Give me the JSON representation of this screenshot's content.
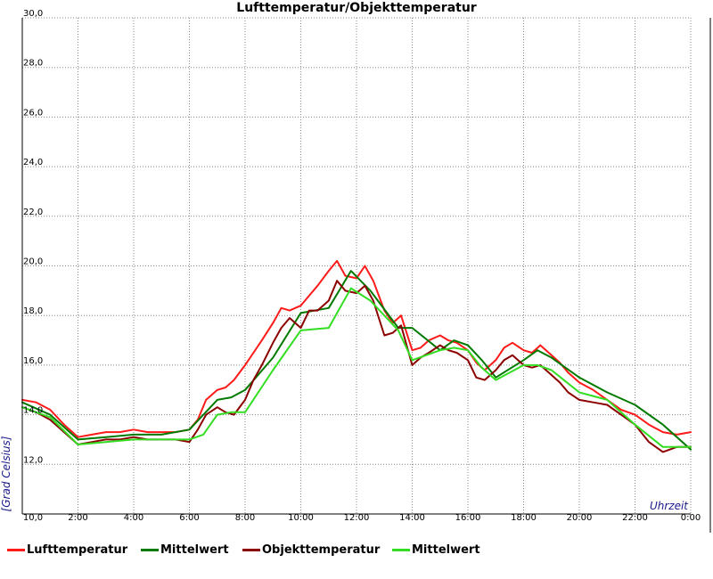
{
  "chart_data": {
    "type": "line",
    "title": "Lufttemperatur/Objekttemperatur",
    "xlabel": "Uhrzeit",
    "ylabel": "[Grad Celsius]",
    "x_ticks": [
      "10,0",
      "2:00",
      "4:00",
      "6:00",
      "8:00",
      "10:00",
      "12:00",
      "14:00",
      "16:00",
      "18:00",
      "20:00",
      "22:00",
      "0:00"
    ],
    "y_ticks": [
      "12,0",
      "14,0",
      "16,0",
      "18,0",
      "20,0",
      "22,0",
      "24,0",
      "26,0",
      "28,0",
      "30,0"
    ],
    "xlim": [
      0,
      24
    ],
    "ylim": [
      10,
      30
    ],
    "grid": true,
    "legend_position": "bottom",
    "series": [
      {
        "name": "Lufttemperatur",
        "color": "#ff1a1a",
        "x": [
          0,
          0.5,
          1,
          1.5,
          2,
          2.5,
          3,
          3.5,
          4,
          4.5,
          5,
          5.5,
          6,
          6.3,
          6.6,
          7,
          7.3,
          7.6,
          8,
          8.3,
          8.6,
          9,
          9.3,
          9.6,
          10,
          10.3,
          10.6,
          11,
          11.3,
          11.6,
          12,
          12.3,
          12.6,
          13,
          13.3,
          13.6,
          14,
          14.3,
          14.6,
          15,
          15.3,
          15.6,
          16,
          16.3,
          16.6,
          17,
          17.3,
          17.6,
          18,
          18.3,
          18.6,
          19,
          19.3,
          19.6,
          20,
          20.5,
          21,
          21.5,
          22,
          22.5,
          23,
          23.5,
          24
        ],
        "y": [
          14.6,
          14.5,
          14.2,
          13.6,
          13.1,
          13.2,
          13.3,
          13.3,
          13.4,
          13.3,
          13.3,
          13.3,
          13.4,
          13.8,
          14.6,
          15.0,
          15.1,
          15.4,
          16.0,
          16.5,
          17.0,
          17.7,
          18.3,
          18.2,
          18.4,
          18.8,
          19.2,
          19.8,
          20.2,
          19.6,
          19.5,
          20.0,
          19.4,
          18.2,
          17.7,
          18.0,
          16.6,
          16.7,
          17.0,
          17.2,
          17.0,
          16.9,
          16.6,
          16.1,
          15.8,
          16.2,
          16.7,
          16.9,
          16.6,
          16.5,
          16.8,
          16.4,
          16.1,
          15.7,
          15.3,
          15.0,
          14.6,
          14.2,
          14.0,
          13.6,
          13.3,
          13.2,
          13.3
        ]
      },
      {
        "name": "Mittelwert",
        "color": "#007a00",
        "x": [
          0,
          1,
          2,
          3,
          4,
          5,
          6,
          7,
          7.5,
          8,
          9,
          10,
          11,
          11.8,
          12.5,
          13.5,
          14,
          15,
          15.5,
          16,
          16.5,
          17,
          18,
          18.5,
          19,
          20,
          21,
          22,
          23,
          24
        ],
        "y": [
          14.5,
          14.0,
          13.0,
          13.1,
          13.2,
          13.2,
          13.4,
          14.6,
          14.7,
          15.0,
          16.3,
          18.1,
          18.3,
          19.8,
          19.0,
          17.5,
          17.5,
          16.6,
          17.0,
          16.8,
          16.2,
          15.5,
          16.2,
          16.6,
          16.3,
          15.5,
          14.9,
          14.4,
          13.6,
          12.6
        ]
      },
      {
        "name": "Objekttemperatur",
        "color": "#8b0000",
        "x": [
          0,
          0.5,
          1,
          1.5,
          2,
          2.5,
          3,
          3.5,
          4,
          4.5,
          5,
          5.5,
          6,
          6.3,
          6.6,
          7,
          7.3,
          7.6,
          8,
          8.3,
          8.6,
          9,
          9.3,
          9.6,
          10,
          10.3,
          10.6,
          11,
          11.3,
          11.6,
          12,
          12.3,
          12.6,
          13,
          13.3,
          13.6,
          14,
          14.3,
          14.6,
          15,
          15.3,
          15.6,
          16,
          16.3,
          16.6,
          17,
          17.3,
          17.6,
          18,
          18.3,
          18.6,
          19,
          19.3,
          19.6,
          20,
          20.5,
          21,
          21.5,
          22,
          22.5,
          23,
          23.5,
          24
        ],
        "y": [
          14.3,
          14.1,
          13.8,
          13.3,
          12.8,
          12.9,
          13.0,
          13.0,
          13.1,
          13.0,
          13.0,
          13.0,
          12.9,
          13.4,
          14.0,
          14.3,
          14.1,
          14.0,
          14.6,
          15.4,
          16.0,
          16.9,
          17.5,
          17.9,
          17.5,
          18.2,
          18.2,
          18.6,
          19.4,
          19.0,
          18.9,
          19.2,
          18.6,
          17.2,
          17.3,
          17.6,
          16.0,
          16.3,
          16.5,
          16.8,
          16.6,
          16.5,
          16.2,
          15.5,
          15.4,
          15.8,
          16.2,
          16.4,
          16.0,
          15.9,
          16.0,
          15.6,
          15.3,
          14.9,
          14.6,
          14.5,
          14.4,
          14.0,
          13.6,
          12.9,
          12.5,
          12.7,
          12.7
        ]
      },
      {
        "name": "Mittelwert",
        "color": "#33dd22",
        "x": [
          0,
          1,
          2,
          3,
          4,
          5,
          6,
          6.5,
          7,
          7.5,
          8,
          9,
          10,
          11,
          11.8,
          12.5,
          13.5,
          14,
          15,
          15.5,
          16,
          16.5,
          17,
          18,
          18.5,
          19,
          20,
          21,
          22,
          23,
          24
        ],
        "y": [
          14.3,
          13.9,
          12.8,
          12.9,
          13.0,
          13.0,
          13.0,
          13.2,
          14.0,
          14.1,
          14.1,
          15.8,
          17.4,
          17.5,
          19.1,
          18.6,
          17.4,
          16.2,
          16.6,
          16.7,
          16.6,
          15.9,
          15.4,
          16.0,
          16.0,
          15.8,
          14.9,
          14.6,
          13.6,
          12.7,
          12.7
        ]
      }
    ]
  }
}
